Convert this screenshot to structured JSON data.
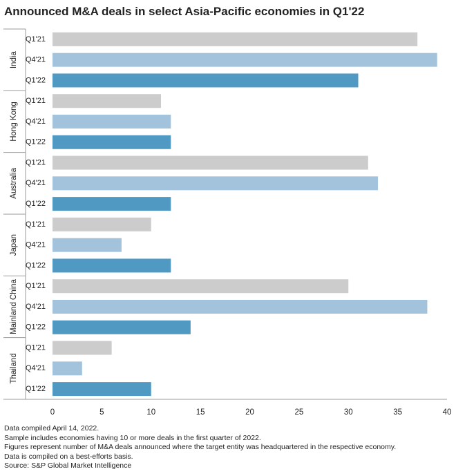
{
  "chart_data": {
    "type": "bar",
    "orientation": "horizontal",
    "title": "Announced M&A deals in select Asia-Pacific economies in Q1'22",
    "groups": [
      "India",
      "Hong Kong",
      "Australia",
      "Japan",
      "Mainland China",
      "Thailand"
    ],
    "quarters": [
      "Q1'21",
      "Q4'21",
      "Q1'22"
    ],
    "series": [
      {
        "name": "Q1'21",
        "color": "#cccccc",
        "values": [
          37,
          11,
          32,
          10,
          30,
          6
        ]
      },
      {
        "name": "Q4'21",
        "color": "#a3c3dc",
        "values": [
          39,
          12,
          33,
          7,
          38,
          3
        ]
      },
      {
        "name": "Q1'22",
        "color": "#4f99c2",
        "values": [
          31,
          12,
          12,
          12,
          14,
          10
        ]
      }
    ],
    "xlim": [
      0,
      40
    ],
    "xticks": [
      "0",
      "5",
      "10",
      "15",
      "20",
      "25",
      "30",
      "35",
      "40"
    ],
    "xlabel": "",
    "ylabel": "",
    "grid": false,
    "legend": "none"
  },
  "notes": [
    "Data compiled April 14, 2022.",
    "Sample includes economies having 10 or more deals in the first quarter of 2022.",
    "Figures represent number of M&A deals announced where the target entity was headquartered in the respective economy.",
    "Data is compiled on a best-efforts basis.",
    "Source: S&P Global Market Intelligence"
  ]
}
